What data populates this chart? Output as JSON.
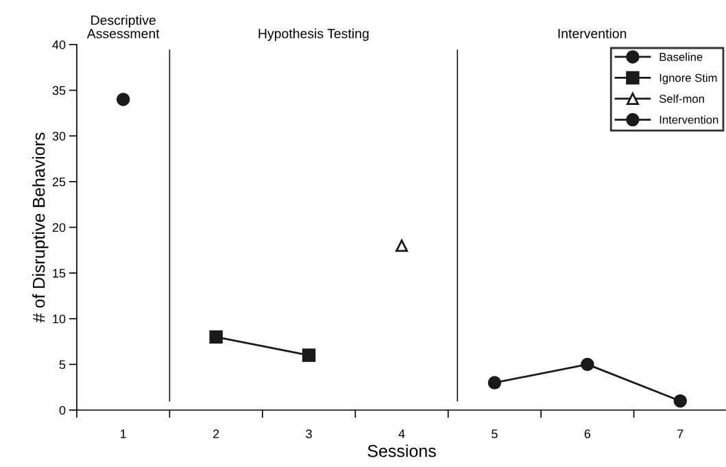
{
  "chart_data": {
    "type": "line",
    "xlabel": "Sessions",
    "ylabel": "# of Disruptive Behaviors",
    "x": [
      1,
      2,
      3,
      4,
      5,
      6,
      7
    ],
    "xlim": [
      0.5,
      7.5
    ],
    "xticks": [
      {
        "value": 0.5,
        "label": null
      },
      {
        "value": 1,
        "label": "1"
      },
      {
        "value": 1.5,
        "label": null
      },
      {
        "value": 2,
        "label": "2"
      },
      {
        "value": 2.5,
        "label": null
      },
      {
        "value": 3,
        "label": "3"
      },
      {
        "value": 3.5,
        "label": null
      },
      {
        "value": 4,
        "label": "4"
      },
      {
        "value": 4.5,
        "label": null
      },
      {
        "value": 5,
        "label": "5"
      },
      {
        "value": 5.5,
        "label": null
      },
      {
        "value": 6,
        "label": "6"
      },
      {
        "value": 6.5,
        "label": null
      },
      {
        "value": 7,
        "label": "7"
      },
      {
        "value": 7.5,
        "label": null
      }
    ],
    "ylim": [
      0,
      40
    ],
    "yticks": [
      0,
      5,
      10,
      15,
      20,
      25,
      30,
      35,
      40
    ],
    "series": [
      {
        "name": "Baseline",
        "color": "#1a1a1a",
        "marker": "circle",
        "values": [
          34,
          null,
          null,
          null,
          null,
          null,
          null
        ]
      },
      {
        "name": "Ignore Stim",
        "color": "#1a1a1a",
        "marker": "square",
        "values": [
          null,
          8,
          6,
          null,
          null,
          null,
          null
        ]
      },
      {
        "name": "Self-mon",
        "color": "#1a1a1a",
        "marker": "triangle",
        "values": [
          null,
          null,
          null,
          18,
          null,
          null,
          null
        ]
      },
      {
        "name": "Intervention",
        "color": "#1a1a1a",
        "marker": "circle",
        "values": [
          null,
          null,
          null,
          null,
          3,
          5,
          1
        ]
      }
    ],
    "ref_lines": [
      {
        "axis": "x",
        "value": 1.5,
        "color": "#1a1a1a"
      },
      {
        "axis": "x",
        "value": 4.6,
        "color": "#1a1a1a"
      }
    ],
    "annotations": [
      "Descriptive\nAssessment",
      "Hypothesis Testing",
      "Intervention"
    ],
    "line_style": "solid",
    "grid": false,
    "legend": "top right"
  }
}
